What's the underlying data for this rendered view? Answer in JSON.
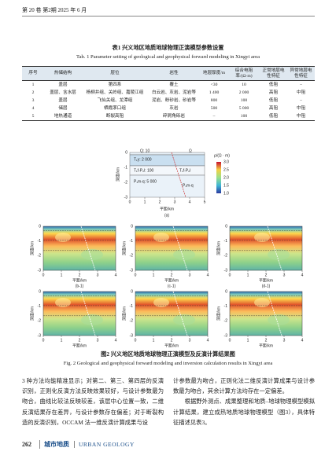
{
  "header": {
    "text": "第 20 卷 第2期   2025 年 6 月"
  },
  "table": {
    "title_cn": "表1   兴义地区地质地球物理正演模型参数设置",
    "title_en": "Tab. 1   Parameter setting of geological and geophysical forward modeling in Xingyi area",
    "columns": [
      "序号",
      "热储结构",
      "层位",
      "岩性",
      "地层厚度/m",
      "综合电阻率/(Ω·m)",
      "正常地层电性特征",
      "异常地层电性特征"
    ],
    "rows": [
      [
        "1",
        "盖层",
        "第四系",
        "覆土",
        "<30",
        "10",
        "低阻",
        "–"
      ],
      [
        "2",
        "盖层、含水层",
        "杨柳井组、关岭组、嘉陵江组",
        "白云岩、灰岩、泥岩等",
        "1 400",
        "2 000",
        "高阻",
        "中阻"
      ],
      [
        "3",
        "盖层",
        "飞仙关组、龙潭组",
        "泥岩、粉砂岩、砂岩等",
        "800",
        "100",
        "低阻",
        "–"
      ],
      [
        "4",
        "储层",
        "栖霞茅口组",
        "灰岩",
        "500",
        "5 000",
        "高阻",
        "中阻"
      ],
      [
        "5",
        "地热通道",
        "断裂高阻",
        "碎屑角砾岩",
        "–",
        "100",
        "低阻",
        "中阻"
      ]
    ]
  },
  "figure": {
    "model": {
      "labels": [
        "Q: 10",
        "T₁y: 2 000",
        "T₁f-P₂l: 100",
        "P₁m-q: 5 000",
        "T₁f-P₂l",
        "P₁m-q",
        "Ω"
      ],
      "panel_label": "(a)",
      "x_label": "平距/km",
      "y_label": "深度/km",
      "x_ticks": [
        "0",
        "1",
        "2",
        "3",
        "4",
        "5"
      ],
      "y_ticks": [
        "0",
        "-1",
        "-2",
        "-3"
      ],
      "colorbar_title": "ρ/(Ω · m)",
      "colorbar_ticks": [
        "3.0",
        "2.5",
        "2.0",
        "1.5",
        "1.0"
      ]
    },
    "axis": {
      "x_label": "平距/km",
      "y_label": "深度/km",
      "x_ticks": [
        "0",
        "1",
        "2",
        "3",
        "4"
      ],
      "y_ticks": [
        "0",
        "-1",
        "-2",
        "-3"
      ]
    },
    "panels": [
      {
        "label": "(b-1)"
      },
      {
        "label": "(c-1)"
      },
      {
        "label": "(d-1)"
      },
      {
        "label": "(b-2)"
      },
      {
        "label": "(c-2)"
      },
      {
        "label": "(d-2)"
      }
    ],
    "caption_cn": "图2   兴义地区地质地球物理正演模型及反演计算结果图",
    "caption_en": "Fig. 2   Geological and geophysical forward modeling and inversion calculation results in Xingyi area"
  },
  "body": {
    "left": [
      "3 种方法均能精准显示；对第二、第三、第四层的反演识别，正则化反演方法反映效果较好，与设计参数最为吻合，曲线比较法反映较差，该层中心位置一致，二维反演结果存在差异，与设计参数存在偏差；对于断裂构造的反演识别，OCCAM 法一维反演计算成果与设"
    ],
    "right": [
      "计参数最为吻合，正则化法二维反演计算成果与设计参数最为吻合，其余计算方法均存在一定偏差。",
      "根据野外测点、成果整理和地质–地球物理模型模拟计算结果，建立成热地质地球物理模型（图3），具体特征描述见表3。"
    ]
  },
  "footer": {
    "page": "262",
    "journal_cn": "城市地质",
    "journal_en": "URBAN GEOLOGY"
  }
}
